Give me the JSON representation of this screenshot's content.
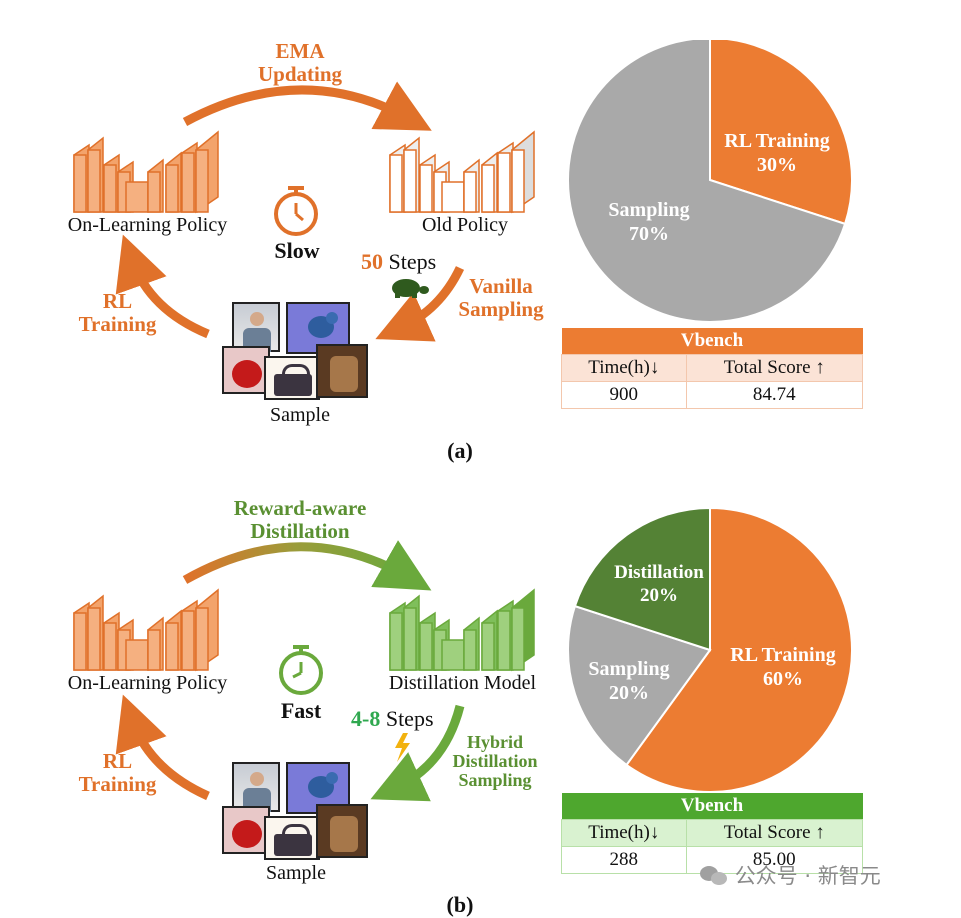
{
  "panel_a": {
    "top_arrow_label": [
      "EMA",
      "Updating"
    ],
    "left_model_label": "On-Learning Policy",
    "right_model_label": "Old Policy",
    "clock_label": "Slow",
    "steps_number": "50",
    "steps_word": "Steps",
    "right_arrow_label": [
      "Vanilla",
      "Sampling"
    ],
    "left_arrow_label": [
      "RL",
      "Training"
    ],
    "sample_label": "Sample",
    "caption": "(a)",
    "pie": {
      "slices": [
        {
          "name": "RL Training",
          "value": 30,
          "label": "30%",
          "color": "#ec7c32"
        },
        {
          "name": "Sampling",
          "value": 70,
          "label": "70%",
          "color": "#a9a9a9"
        }
      ]
    },
    "table": {
      "title": "Vbench",
      "headers": [
        "Time(h)↓",
        "Total Score ↑"
      ],
      "row": [
        "900",
        "84.74"
      ],
      "accent": "#ec7c32"
    }
  },
  "panel_b": {
    "top_arrow_label": [
      "Reward-aware",
      "Distillation"
    ],
    "left_model_label": "On-Learning Policy",
    "right_model_label": "Distillation Model",
    "clock_label": "Fast",
    "steps_number": "4-8",
    "steps_word": "Steps",
    "right_arrow_label": [
      "Hybrid",
      "Distillation",
      "Sampling"
    ],
    "left_arrow_label": [
      "RL",
      "Training"
    ],
    "sample_label": "Sample",
    "caption": "(b)",
    "pie": {
      "slices": [
        {
          "name": "RL Training",
          "value": 60,
          "label": "60%",
          "color": "#ec7c32"
        },
        {
          "name": "Sampling",
          "value": 20,
          "label": "20%",
          "color": "#a9a9a9"
        },
        {
          "name": "Distillation",
          "value": 20,
          "label": "20%",
          "color": "#548235"
        }
      ]
    },
    "table": {
      "title": "Vbench",
      "headers": [
        "Time(h)↓",
        "Total Score ↑"
      ],
      "row": [
        "288",
        "85.00"
      ],
      "accent": "#4ea72e"
    }
  },
  "watermark": "公众号 · 新智元"
}
